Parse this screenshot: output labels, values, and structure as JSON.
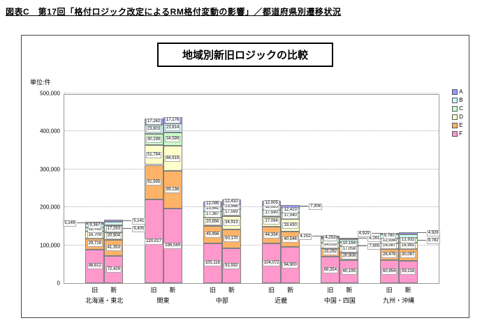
{
  "page": {
    "header": "図表C　第17回「格付ロジック改定によるRM格付変動の影響」／都道府県別遷移状況"
  },
  "chart_data": {
    "type": "bar",
    "stacked": true,
    "title": "地域別新旧ロジックの比較",
    "unit_label": "単位:件",
    "ylim": [
      0,
      500000
    ],
    "ytick_interval": 100000,
    "yticks": [
      "0",
      "100,000",
      "200,000",
      "300,000",
      "400,000",
      "500,000"
    ],
    "legend_position": "right",
    "grid": true,
    "stack_order_bottom_to_top": [
      "F",
      "E",
      "D",
      "C",
      "B",
      "A"
    ],
    "colors": {
      "A": "#9999FF",
      "B": "#CCFFFF",
      "C": "#CCFFCC",
      "D": "#FFFFCC",
      "E": "#FFB366",
      "F": "#FF99CC"
    },
    "legend": [
      {
        "name": "A",
        "color": "#9999FF"
      },
      {
        "name": "B",
        "color": "#CCFFFF"
      },
      {
        "name": "C",
        "color": "#CCFFCC"
      },
      {
        "name": "D",
        "color": "#FFFFCC"
      },
      {
        "name": "E",
        "color": "#FFB366"
      },
      {
        "name": "F",
        "color": "#FF99CC"
      }
    ],
    "groups": [
      {
        "region": "北海道・東北",
        "bars": [
          {
            "label": "旧",
            "segments": [
              {
                "s": "F",
                "v": 88812
              },
              {
                "s": "E",
                "v": 29716
              },
              {
                "s": "D",
                "v": 16709
              },
              {
                "s": "C",
                "v": 11793
              },
              {
                "s": "B",
                "v": 9367
              },
              {
                "s": "A",
                "v": 5149,
                "callout": "left"
              }
            ]
          },
          {
            "label": "新",
            "segments": [
              {
                "s": "F",
                "v": 72429
              },
              {
                "s": "E",
                "v": 41353
              },
              {
                "s": "D",
                "v": 20904
              },
              {
                "s": "C",
                "v": 17293
              },
              {
                "s": "B",
                "v": 9405,
                "callout": "right"
              },
              {
                "s": "A",
                "v": 5141,
                "callout": "right"
              }
            ]
          }
        ]
      },
      {
        "region": "関東",
        "bars": [
          {
            "label": "旧",
            "segments": [
              {
                "s": "F",
                "v": 220017
              },
              {
                "s": "E",
                "v": 91595
              },
              {
                "s": "D",
                "v": 51794
              },
              {
                "s": "C",
                "v": 30199
              },
              {
                "s": "B",
                "v": 23803
              },
              {
                "s": "A",
                "v": 17162
              }
            ]
          },
          {
            "label": "新",
            "segments": [
              {
                "s": "F",
                "v": 196049
              },
              {
                "s": "E",
                "v": 99136
              },
              {
                "s": "D",
                "v": 66919
              },
              {
                "s": "C",
                "v": 34599
              },
              {
                "s": "B",
                "v": 23814
              },
              {
                "s": "A",
                "v": 17176
              }
            ]
          }
        ]
      },
      {
        "region": "中部",
        "bars": [
          {
            "label": "旧",
            "segments": [
              {
                "s": "F",
                "v": 105116
              },
              {
                "s": "E",
                "v": 45956
              },
              {
                "s": "D",
                "v": 20856
              },
              {
                "s": "C",
                "v": 17387
              },
              {
                "s": "B",
                "v": 13541
              },
              {
                "s": "A",
                "v": 12095
              }
            ]
          },
          {
            "label": "新",
            "segments": [
              {
                "s": "F",
                "v": 91932
              },
              {
                "s": "E",
                "v": 50170
              },
              {
                "s": "D",
                "v": 34913
              },
              {
                "s": "C",
                "v": 17593
              },
              {
                "s": "B",
                "v": 13548
              },
              {
                "s": "A",
                "v": 12410
              }
            ]
          }
        ]
      },
      {
        "region": "近畿",
        "bars": [
          {
            "label": "旧",
            "segments": [
              {
                "s": "F",
                "v": 104072
              },
              {
                "s": "E",
                "v": 44334
              },
              {
                "s": "D",
                "v": 27094
              },
              {
                "s": "C",
                "v": 17590
              },
              {
                "s": "B",
                "v": 12085
              },
              {
                "s": "A",
                "v": 12005
              }
            ]
          },
          {
            "label": "新",
            "segments": [
              {
                "s": "F",
                "v": 94900
              },
              {
                "s": "E",
                "v": 40546
              },
              {
                "s": "D",
                "v": 33430
              },
              {
                "s": "C",
                "v": 17040
              },
              {
                "s": "B",
                "v": 12410
              },
              {
                "s": "A",
                "v": 7304,
                "callout": "right"
              }
            ]
          }
        ]
      },
      {
        "region": "中国・四国",
        "bars": [
          {
            "label": "旧",
            "segments": [
              {
                "s": "F",
                "v": 69354
              },
              {
                "s": "E",
                "v": 23292
              },
              {
                "s": "D",
                "v": 14050
              },
              {
                "s": "C",
                "v": 10159
              },
              {
                "s": "B",
                "v": 4253
              },
              {
                "s": "A",
                "v": 4152,
                "callout": "left"
              }
            ]
          },
          {
            "label": "新",
            "segments": [
              {
                "s": "F",
                "v": 60195
              },
              {
                "s": "E",
                "v": 20908
              },
              {
                "s": "D",
                "v": 17058
              },
              {
                "s": "C",
                "v": 10164
              },
              {
                "s": "B",
                "v": 7905,
                "callout": "right"
              },
              {
                "s": "A",
                "v": 4161,
                "callout": "right"
              }
            ]
          }
        ]
      },
      {
        "region": "九州・沖縄",
        "bars": [
          {
            "label": "旧",
            "segments": [
              {
                "s": "F",
                "v": 60954
              },
              {
                "s": "E",
                "v": 28476
              },
              {
                "s": "D",
                "v": 16087
              },
              {
                "s": "C",
                "v": 12934
              },
              {
                "s": "B",
                "v": 9780
              },
              {
                "s": "A",
                "v": 4929,
                "callout": "left"
              }
            ]
          },
          {
            "label": "新",
            "segments": [
              {
                "s": "F",
                "v": 59216
              },
              {
                "s": "E",
                "v": 30087
              },
              {
                "s": "D",
                "v": 16992
              },
              {
                "s": "C",
                "v": 12932
              },
              {
                "s": "B",
                "v": 9782,
                "callout": "right"
              },
              {
                "s": "A",
                "v": 4926,
                "callout": "right"
              }
            ]
          }
        ]
      }
    ]
  }
}
